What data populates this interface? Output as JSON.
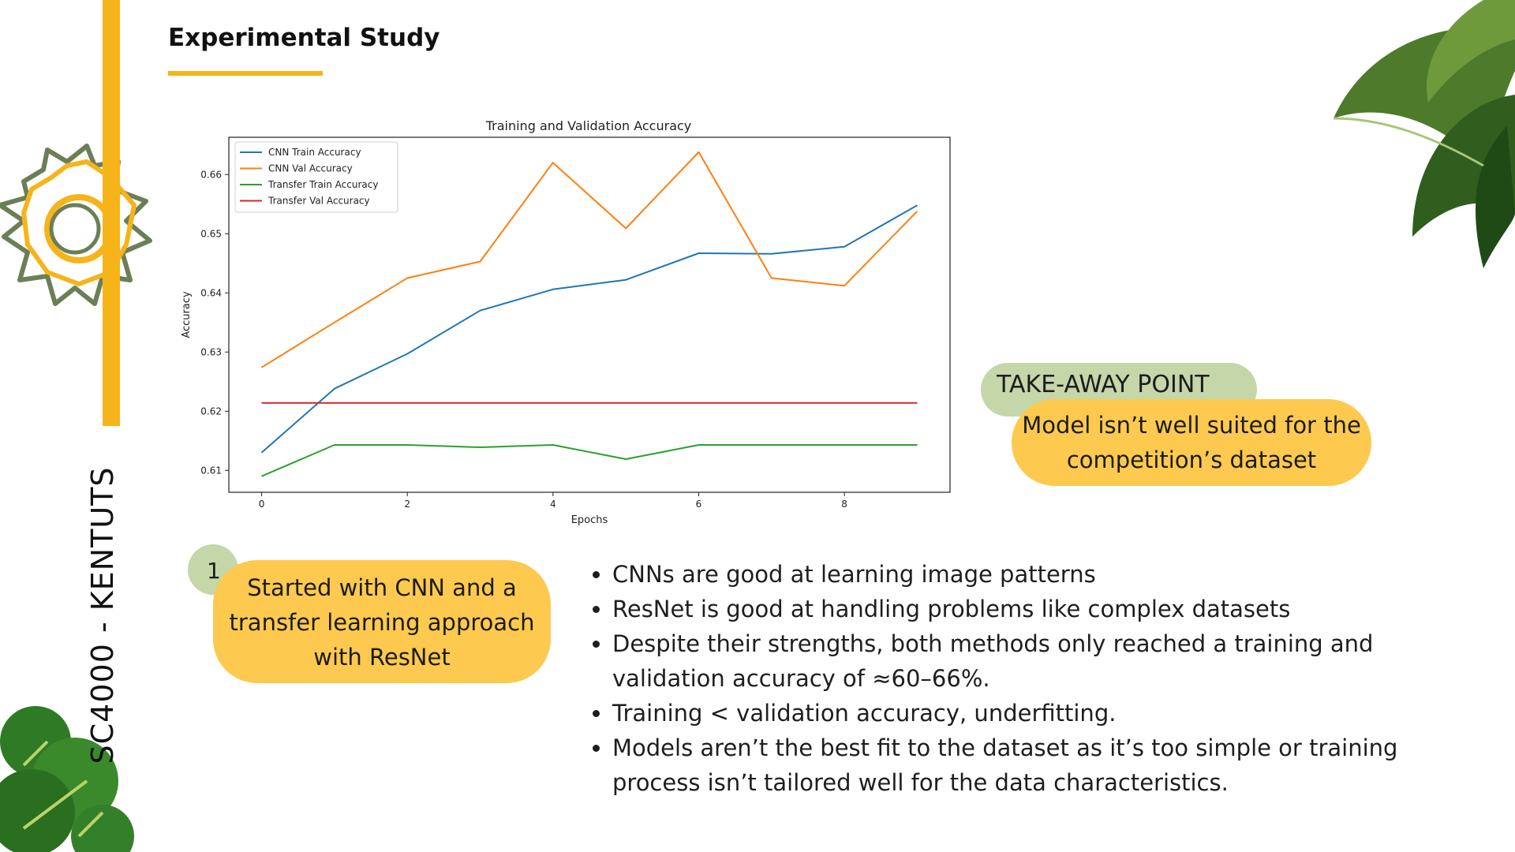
{
  "slide": {
    "title": "Experimental Study",
    "side_label": "SC4000 - KENTUTS",
    "takeaway_label": "TAKE-AWAY POINT",
    "takeaway_text": "Model isn’t well suited for the competition’s dataset",
    "step_number": "1",
    "step_text": "Started with CNN and a transfer learning approach with ResNet",
    "bullets": [
      "CNNs are good at learning image patterns",
      "ResNet is good at handling problems like complex datasets",
      "Despite their strengths, both methods only reached a training and validation accuracy of ≈60–66%.",
      "Training < validation accuracy,  underfitting.",
      "Models aren’t the best fit to the dataset as it’s too simple or training process isn’t tailored well for the data characteristics."
    ],
    "colors": {
      "accent": "#f6b41a",
      "pill_yellow": "#fdc94f",
      "pill_green": "#c5d6a8"
    }
  },
  "chart_data": {
    "type": "line",
    "title": "Training and Validation Accuracy",
    "xlabel": "Epochs",
    "ylabel": "Accuracy",
    "xlim": [
      -0.45,
      9.45
    ],
    "ylim": [
      0.6063,
      0.6663
    ],
    "xticks": [
      0,
      2,
      4,
      6,
      8
    ],
    "yticks": [
      0.61,
      0.62,
      0.63,
      0.64,
      0.65,
      0.66
    ],
    "ytick_labels": [
      "0.61",
      "0.62",
      "0.63",
      "0.64",
      "0.65",
      "0.66"
    ],
    "legend_position": "upper-left",
    "x": [
      0,
      1,
      2,
      3,
      4,
      5,
      6,
      7,
      8,
      9
    ],
    "series": [
      {
        "name": "CNN Train Accuracy",
        "color": "#1f77b4",
        "values": [
          0.613,
          0.6238,
          0.6297,
          0.637,
          0.6406,
          0.6422,
          0.6467,
          0.6466,
          0.6478,
          0.6548
        ]
      },
      {
        "name": "CNN Val Accuracy",
        "color": "#ff7f0e",
        "values": [
          0.6274,
          0.635,
          0.6425,
          0.6453,
          0.662,
          0.6509,
          0.6638,
          0.6425,
          0.6412,
          0.6538
        ]
      },
      {
        "name": "Transfer Train Accuracy",
        "color": "#2ca02c",
        "values": [
          0.609,
          0.6143,
          0.6143,
          0.6139,
          0.6143,
          0.6119,
          0.6143,
          0.6143,
          0.6143,
          0.6143
        ]
      },
      {
        "name": "Transfer Val Accuracy",
        "color": "#d62728",
        "values": [
          0.6214,
          0.6214,
          0.6214,
          0.6214,
          0.6214,
          0.6214,
          0.6214,
          0.6214,
          0.6214,
          0.6214
        ]
      }
    ]
  }
}
